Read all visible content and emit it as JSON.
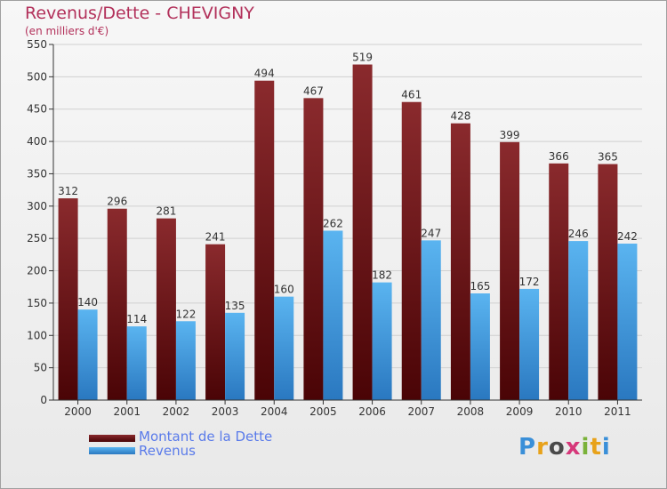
{
  "chart_data": {
    "type": "bar",
    "title": "Revenus/Dette - CHEVIGNY",
    "subtitle": "(en milliers d'€)",
    "categories": [
      "2000",
      "2001",
      "2002",
      "2003",
      "2004",
      "2005",
      "2006",
      "2007",
      "2008",
      "2009",
      "2010",
      "2011"
    ],
    "series": [
      {
        "name": "Montant de la Dette",
        "color": "#6b0f12",
        "values": [
          312,
          296,
          281,
          241,
          494,
          467,
          519,
          461,
          428,
          399,
          366,
          365
        ]
      },
      {
        "name": "Revenus",
        "color": "#3d9ae0",
        "values": [
          140,
          114,
          122,
          135,
          160,
          262,
          182,
          247,
          165,
          172,
          246,
          242
        ]
      }
    ],
    "ylim": [
      0,
      550
    ],
    "yticks": [
      0,
      50,
      100,
      150,
      200,
      250,
      300,
      350,
      400,
      450,
      500,
      550
    ],
    "grid": true,
    "legend_position": "bottom-left"
  },
  "logo": {
    "letters": [
      "P",
      "r",
      "o",
      "x",
      "i",
      "t",
      "i"
    ],
    "colors": [
      "#3a8fd8",
      "#e8a21a",
      "#4a4a4a",
      "#d6387a",
      "#7ab23a",
      "#e8a21a",
      "#3a8fd8"
    ]
  }
}
